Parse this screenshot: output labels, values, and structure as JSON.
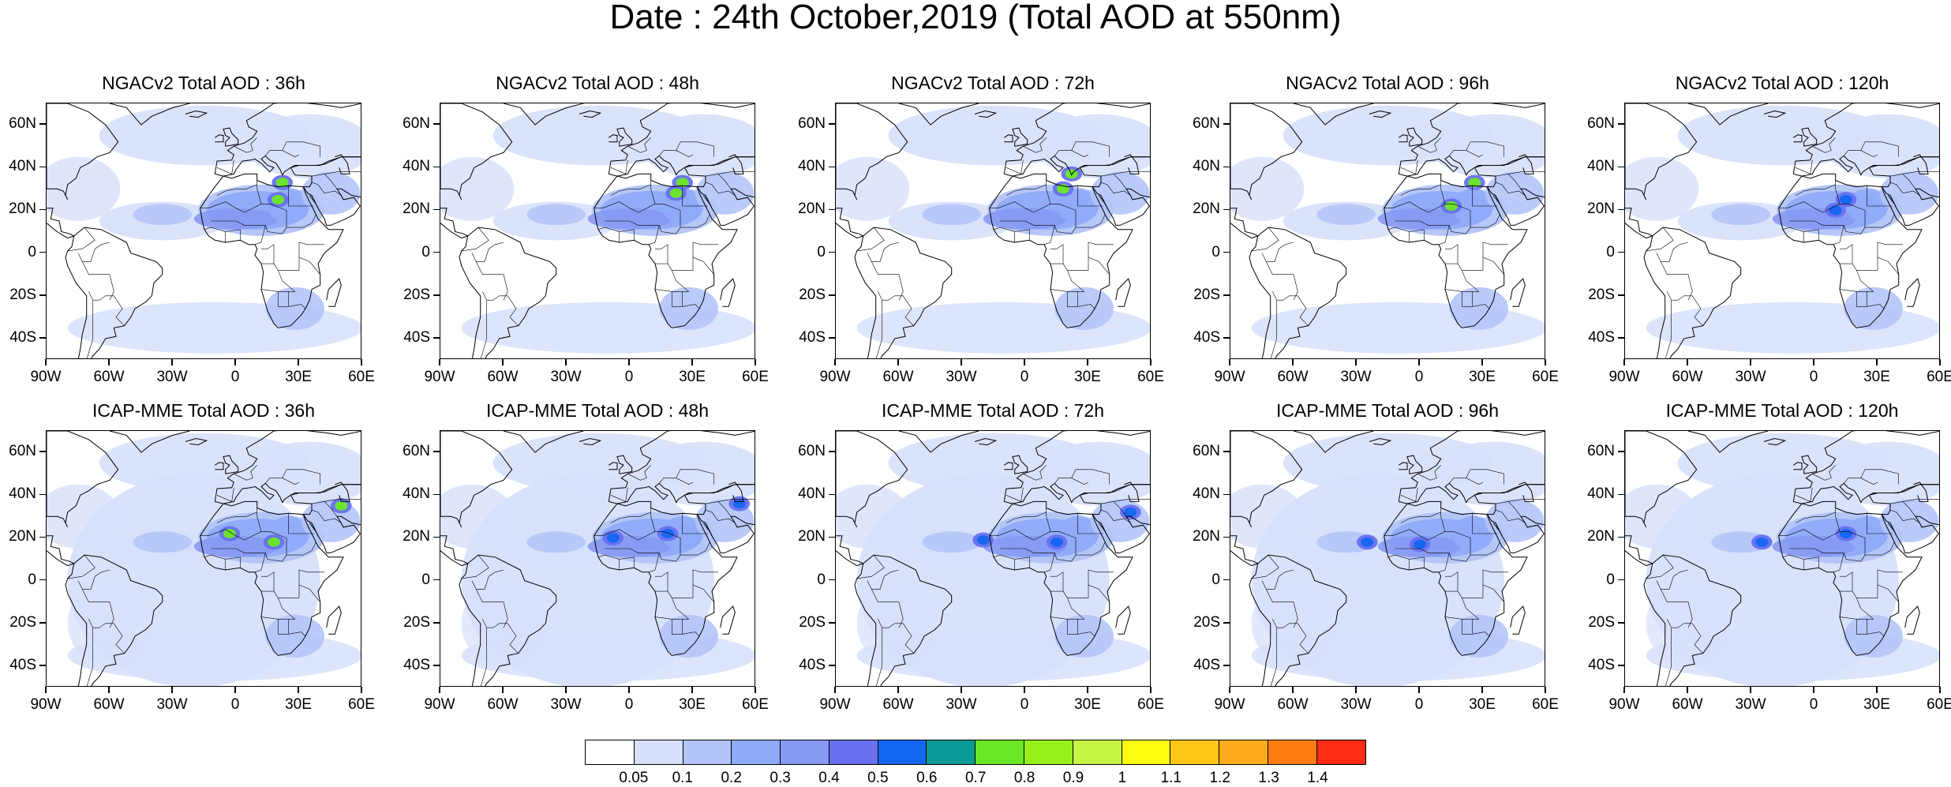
{
  "title": "Date : 24th October,2019 (Total AOD at 550nm)",
  "panels": [
    {
      "title": "NGACv2 Total AOD : 36h",
      "model": "NGACv2",
      "lead": "36h",
      "dust_intensity": 0.8
    },
    {
      "title": "NGACv2 Total AOD : 48h",
      "model": "NGACv2",
      "lead": "48h",
      "dust_intensity": 0.9
    },
    {
      "title": "NGACv2 Total AOD : 72h",
      "model": "NGACv2",
      "lead": "72h",
      "dust_intensity": 0.9
    },
    {
      "title": "NGACv2 Total AOD : 96h",
      "model": "NGACv2",
      "lead": "96h",
      "dust_intensity": 0.8
    },
    {
      "title": "NGACv2 Total AOD : 120h",
      "model": "NGACv2",
      "lead": "120h",
      "dust_intensity": 0.7
    },
    {
      "title": "ICAP-MME Total AOD : 36h",
      "model": "ICAP-MME",
      "lead": "36h",
      "dust_intensity": 0.8
    },
    {
      "title": "ICAP-MME Total AOD : 48h",
      "model": "ICAP-MME",
      "lead": "48h",
      "dust_intensity": 0.7
    },
    {
      "title": "ICAP-MME Total AOD : 72h",
      "model": "ICAP-MME",
      "lead": "72h",
      "dust_intensity": 0.7
    },
    {
      "title": "ICAP-MME Total AOD : 96h",
      "model": "ICAP-MME",
      "lead": "96h",
      "dust_intensity": 0.5
    },
    {
      "title": "ICAP-MME Total AOD : 120h",
      "model": "ICAP-MME",
      "lead": "120h",
      "dust_intensity": 0.5
    }
  ],
  "axes": {
    "lon_ticks": [
      "90W",
      "60W",
      "30W",
      "0",
      "30E",
      "60E"
    ],
    "lat_ticks": [
      "60N",
      "40N",
      "20N",
      "0",
      "20S",
      "40S"
    ],
    "lon_range": [
      -90,
      60
    ],
    "lat_range": [
      -50,
      70
    ]
  },
  "colorbar": {
    "colors": [
      "#ffffff",
      "#d7e0fb",
      "#b2c4f8",
      "#8fabf8",
      "#8699f3",
      "#6870ee",
      "#1366f0",
      "#0b9a96",
      "#6be825",
      "#98f01b",
      "#c8f545",
      "#fffe12",
      "#ffc715",
      "#ffab1c",
      "#ff7d10",
      "#ff2b14"
    ],
    "labels": [
      "0.05",
      "0.1",
      "0.2",
      "0.3",
      "0.4",
      "0.5",
      "0.6",
      "0.7",
      "0.8",
      "0.9",
      "1",
      "1.1",
      "1.2",
      "1.3",
      "1.4"
    ]
  }
}
